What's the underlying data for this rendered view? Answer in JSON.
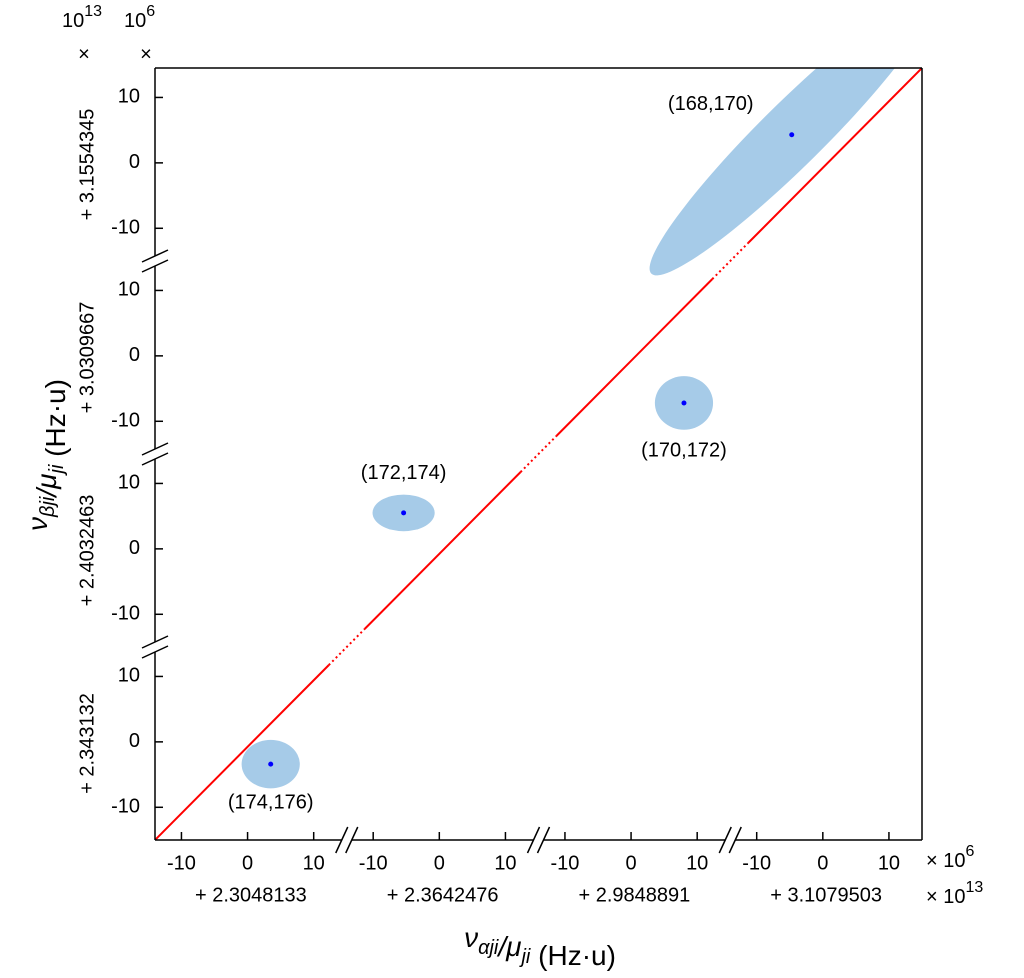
{
  "chart_data": {
    "type": "scatter",
    "x_panels": [
      {
        "offset": "+ 2.3048133",
        "xlim": [
          -14,
          15
        ],
        "xticks": [
          -10,
          0,
          10
        ]
      },
      {
        "offset": "+ 2.3642476",
        "xlim": [
          -14,
          15
        ],
        "xticks": [
          -10,
          0,
          10
        ]
      },
      {
        "offset": "+ 2.9848891",
        "xlim": [
          -14,
          15
        ],
        "xticks": [
          -10,
          0,
          10
        ]
      },
      {
        "offset": "+ 3.1079503",
        "xlim": [
          -14,
          15
        ],
        "xticks": [
          -10,
          0,
          10
        ]
      }
    ],
    "y_panels": [
      {
        "offset": "+ 2.343132",
        "ylim": [
          -15,
          14.5
        ],
        "yticks": [
          -10,
          0,
          10
        ]
      },
      {
        "offset": "+ 2.4032463",
        "ylim": [
          -15,
          14.5
        ],
        "yticks": [
          -10,
          0,
          10
        ]
      },
      {
        "offset": "+ 3.0309667",
        "ylim": [
          -15,
          14.5
        ],
        "yticks": [
          -10,
          0,
          10
        ]
      },
      {
        "offset": "+ 3.1554345",
        "ylim": [
          -15,
          14.5
        ],
        "yticks": [
          -10,
          0,
          10
        ]
      }
    ],
    "x_scale": {
      "text": "× 10",
      "exponent": "6"
    },
    "x_offset_scale": {
      "text": "× 10",
      "exponent": "13"
    },
    "y_scale": {
      "sign": "×",
      "text": "10",
      "exponent": "6"
    },
    "y_offset_scale": {
      "sign": "×",
      "text": "10",
      "exponent": "13"
    },
    "xlabel": [
      {
        "text": "ν",
        "sub": "αji"
      },
      {
        "text": "/μ",
        "sub": "ji"
      },
      {
        "text": " (Hz·u)"
      }
    ],
    "ylabel": [
      {
        "text": "ν",
        "sub": "βji"
      },
      {
        "text": "/μ",
        "sub": "ji"
      },
      {
        "text": " (Hz·u)"
      }
    ],
    "ellipse_color": "#a6cbe8",
    "point_color": "#0000ff",
    "diagonal_color": "#ff0000",
    "points": [
      {
        "label": "(174,176)",
        "x_panel": 0,
        "y_panel": 0,
        "x": 3.5,
        "y": -3.4,
        "sx": 4.4,
        "sy": 3.7,
        "rho": 0
      },
      {
        "label": "(172,174)",
        "x_panel": 1,
        "y_panel": 1,
        "x": -5.4,
        "y": 5.5,
        "sx": 4.7,
        "sy": 2.8,
        "rho": 0
      },
      {
        "label": "(170,172)",
        "x_panel": 2,
        "y_panel": 2,
        "x": 8,
        "y": -7.2,
        "sx": 4.4,
        "sy": 4.1,
        "rho": 0
      },
      {
        "label": "(168,170)",
        "x_panel": 3,
        "y_panel": 3,
        "x": -4.7,
        "y": 4.3,
        "sx": 21.5,
        "sy": 21.5,
        "rho": 0.95
      }
    ]
  }
}
